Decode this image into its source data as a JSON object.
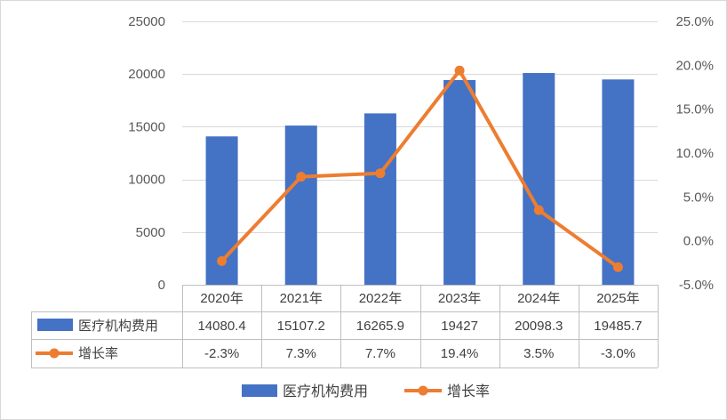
{
  "chart_data": {
    "type": "bar",
    "categories": [
      "2020年",
      "2021年",
      "2022年",
      "2023年",
      "2024年",
      "2025年"
    ],
    "series": [
      {
        "name": "医疗机构费用",
        "type": "bar",
        "axis": "left",
        "values": [
          14080.4,
          15107.2,
          16265.9,
          19427,
          20098.3,
          19485.7
        ],
        "labels": [
          "14080.4",
          "15107.2",
          "16265.9",
          "19427",
          "20098.3",
          "19485.7"
        ],
        "color": "#4472C4"
      },
      {
        "name": "增长率",
        "type": "line",
        "axis": "right",
        "values": [
          -2.3,
          7.3,
          7.7,
          19.4,
          3.5,
          -3.0
        ],
        "labels": [
          "-2.3%",
          "7.3%",
          "7.7%",
          "19.4%",
          "3.5%",
          "-3.0%"
        ],
        "color": "#ED7D31"
      }
    ],
    "y_left": {
      "range": [
        0,
        25000
      ],
      "ticks": [
        "0",
        "5000",
        "10000",
        "15000",
        "20000",
        "25000"
      ]
    },
    "y_right": {
      "range": [
        -5,
        25
      ],
      "ticks": [
        "-5.0%",
        "0.0%",
        "5.0%",
        "10.0%",
        "15.0%",
        "20.0%",
        "25.0%"
      ]
    },
    "grid": true,
    "data_table": true,
    "legend": {
      "position": "bottom",
      "items": [
        "医疗机构费用",
        "增长率"
      ]
    }
  }
}
